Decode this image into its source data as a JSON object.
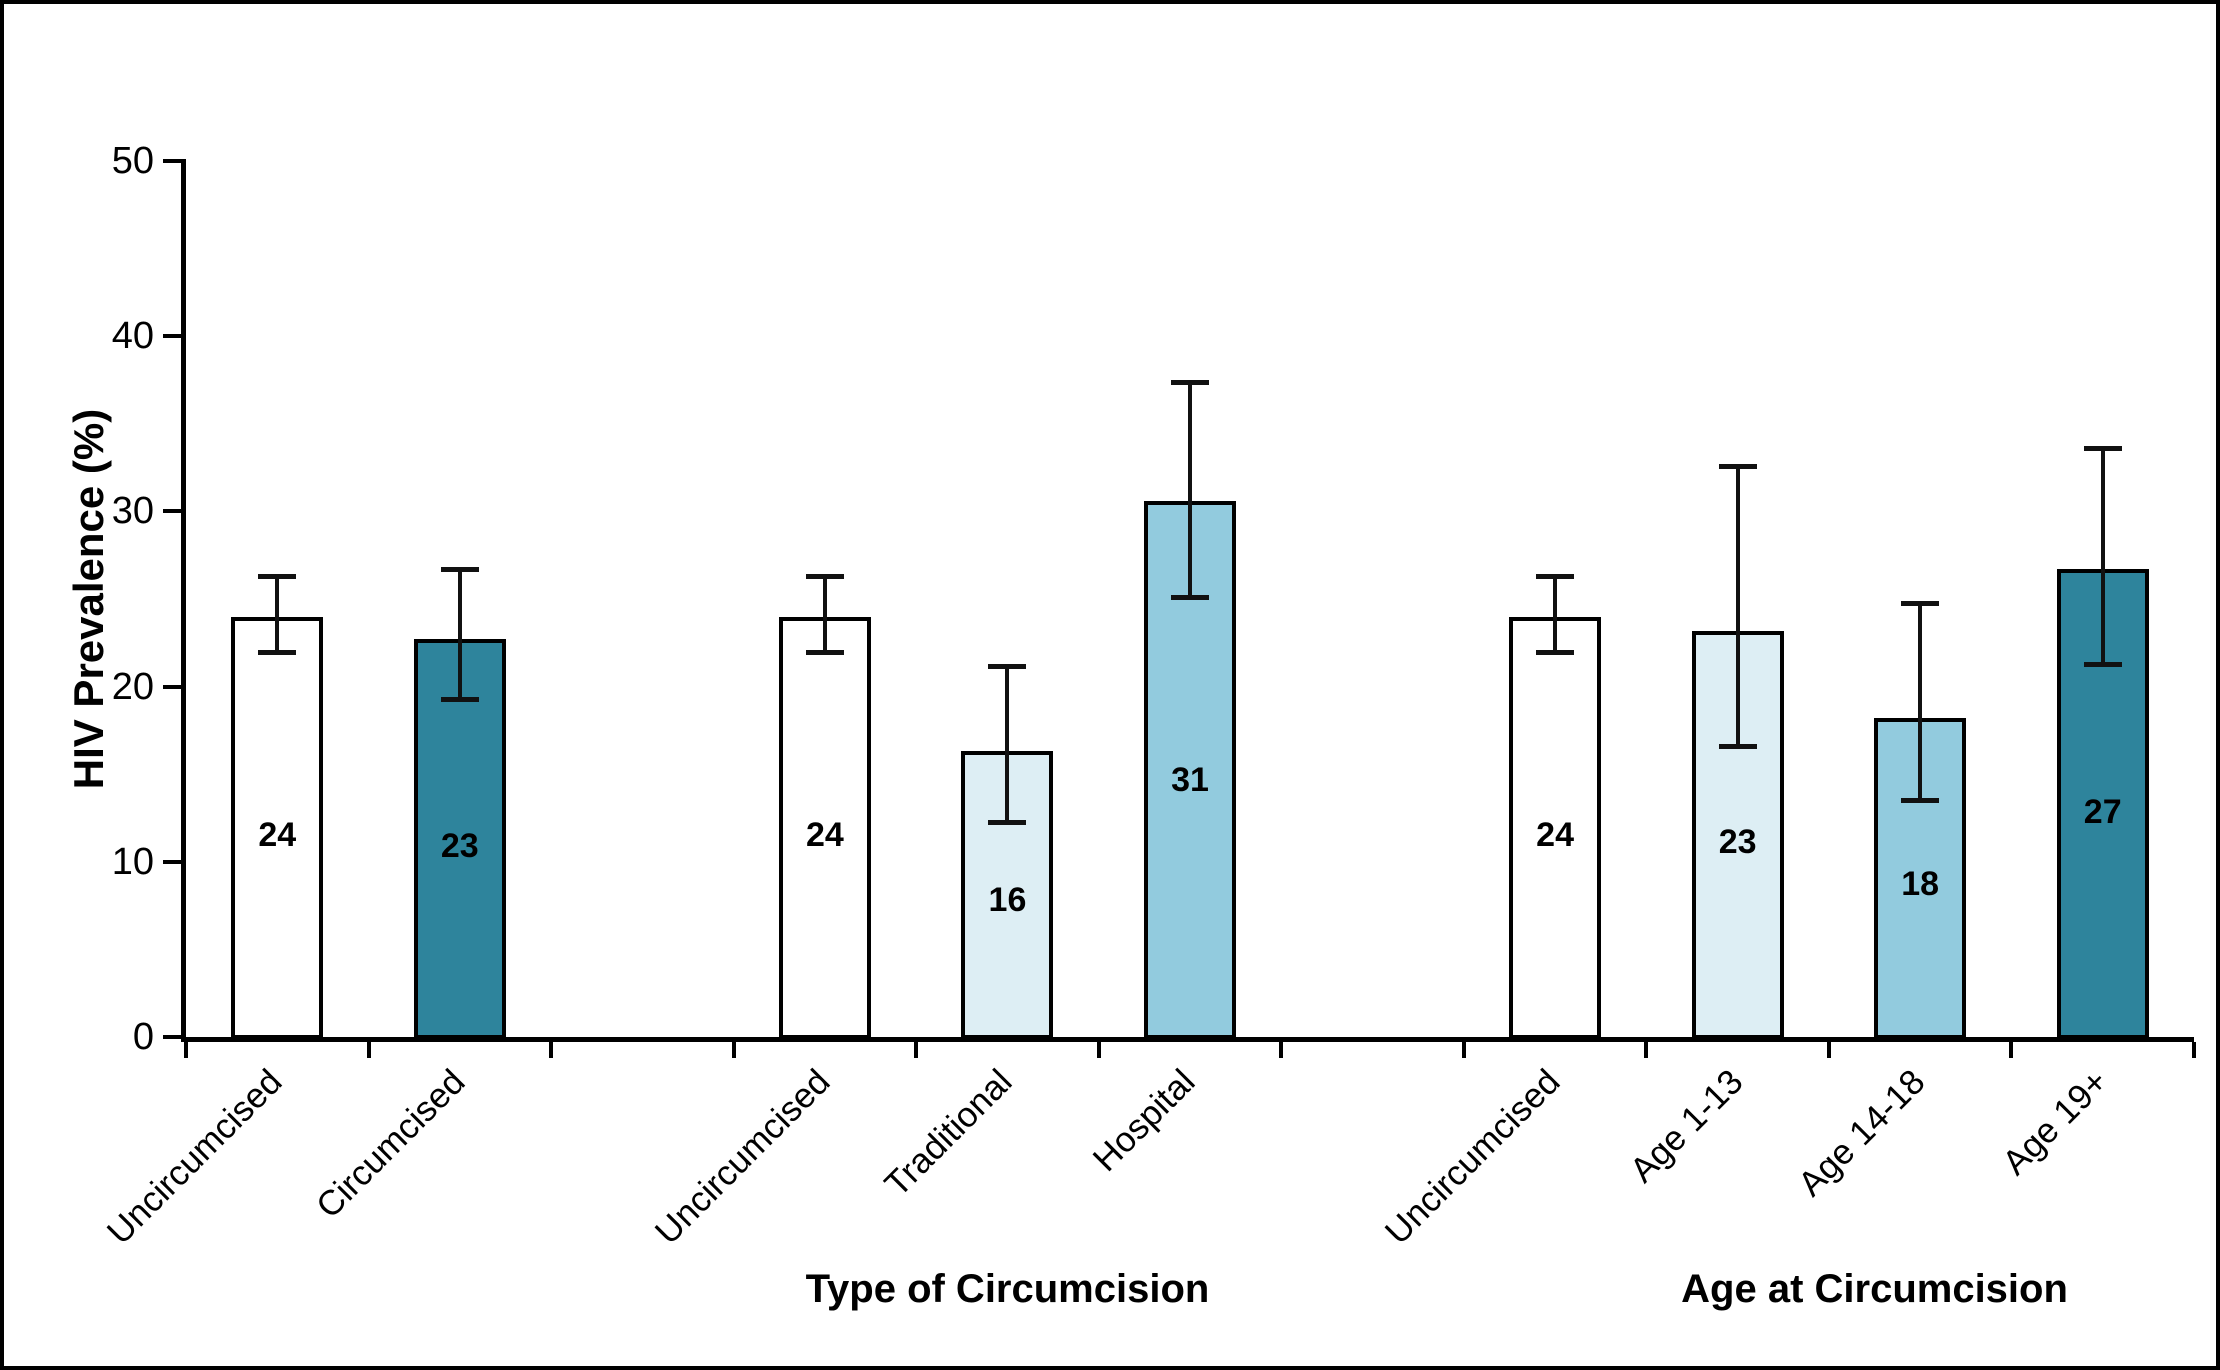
{
  "figure": {
    "background": "#FFFFFF",
    "frame_color": "#000000"
  },
  "chart_data": {
    "type": "bar",
    "title": "",
    "xlabel": "",
    "ylabel": "HIV Prevalence (%)",
    "ylim": [
      0,
      50
    ],
    "yticks": [
      0,
      10,
      20,
      30,
      40,
      50
    ],
    "grid": false,
    "legend": "none",
    "n_slots": 11,
    "error_bars": true,
    "bars": [
      {
        "slot": 0,
        "category": "Uncircumcised",
        "value_label": "24",
        "value": 24.0,
        "ci_low": 22.0,
        "ci_high": 26.3,
        "fill": "#FFFFFF"
      },
      {
        "slot": 1,
        "category": "Circumcised",
        "value_label": "23",
        "value": 22.7,
        "ci_low": 19.3,
        "ci_high": 26.7,
        "fill": "#2E849C"
      },
      {
        "slot": 3,
        "category": "Uncircumcised",
        "value_label": "24",
        "value": 24.0,
        "ci_low": 22.0,
        "ci_high": 26.3,
        "fill": "#FFFFFF"
      },
      {
        "slot": 4,
        "category": "Traditional",
        "value_label": "16",
        "value": 16.3,
        "ci_low": 12.3,
        "ci_high": 21.2,
        "fill": "#DDEEF4"
      },
      {
        "slot": 5,
        "category": "Hospital",
        "value_label": "31",
        "value": 30.6,
        "ci_low": 25.1,
        "ci_high": 37.4,
        "fill": "#92CBDE"
      },
      {
        "slot": 7,
        "category": "Uncircumcised",
        "value_label": "24",
        "value": 24.0,
        "ci_low": 22.0,
        "ci_high": 26.3,
        "fill": "#FFFFFF"
      },
      {
        "slot": 8,
        "category": "Age 1-13",
        "value_label": "23",
        "value": 23.2,
        "ci_low": 16.6,
        "ci_high": 32.6,
        "fill": "#DDEEF4"
      },
      {
        "slot": 9,
        "category": "Age 14-18",
        "value_label": "18",
        "value": 18.2,
        "ci_low": 13.5,
        "ci_high": 24.8,
        "fill": "#92CBDE"
      },
      {
        "slot": 10,
        "category": "Age 19+",
        "value_label": "27",
        "value": 26.7,
        "ci_low": 21.3,
        "ci_high": 33.6,
        "fill": "#2E849C"
      }
    ],
    "group_titles": [
      {
        "label": "Type of Circumcision",
        "center_slot": 4.0
      },
      {
        "label": "Age at Circumcision",
        "center_slot": 8.75
      }
    ],
    "colors": {
      "bar_border": "#000000",
      "axis": "#000000",
      "text": "#000000",
      "dark_teal": "#2E849C",
      "light_blue": "#92CBDE",
      "pale_blue": "#DDEEF4"
    }
  }
}
